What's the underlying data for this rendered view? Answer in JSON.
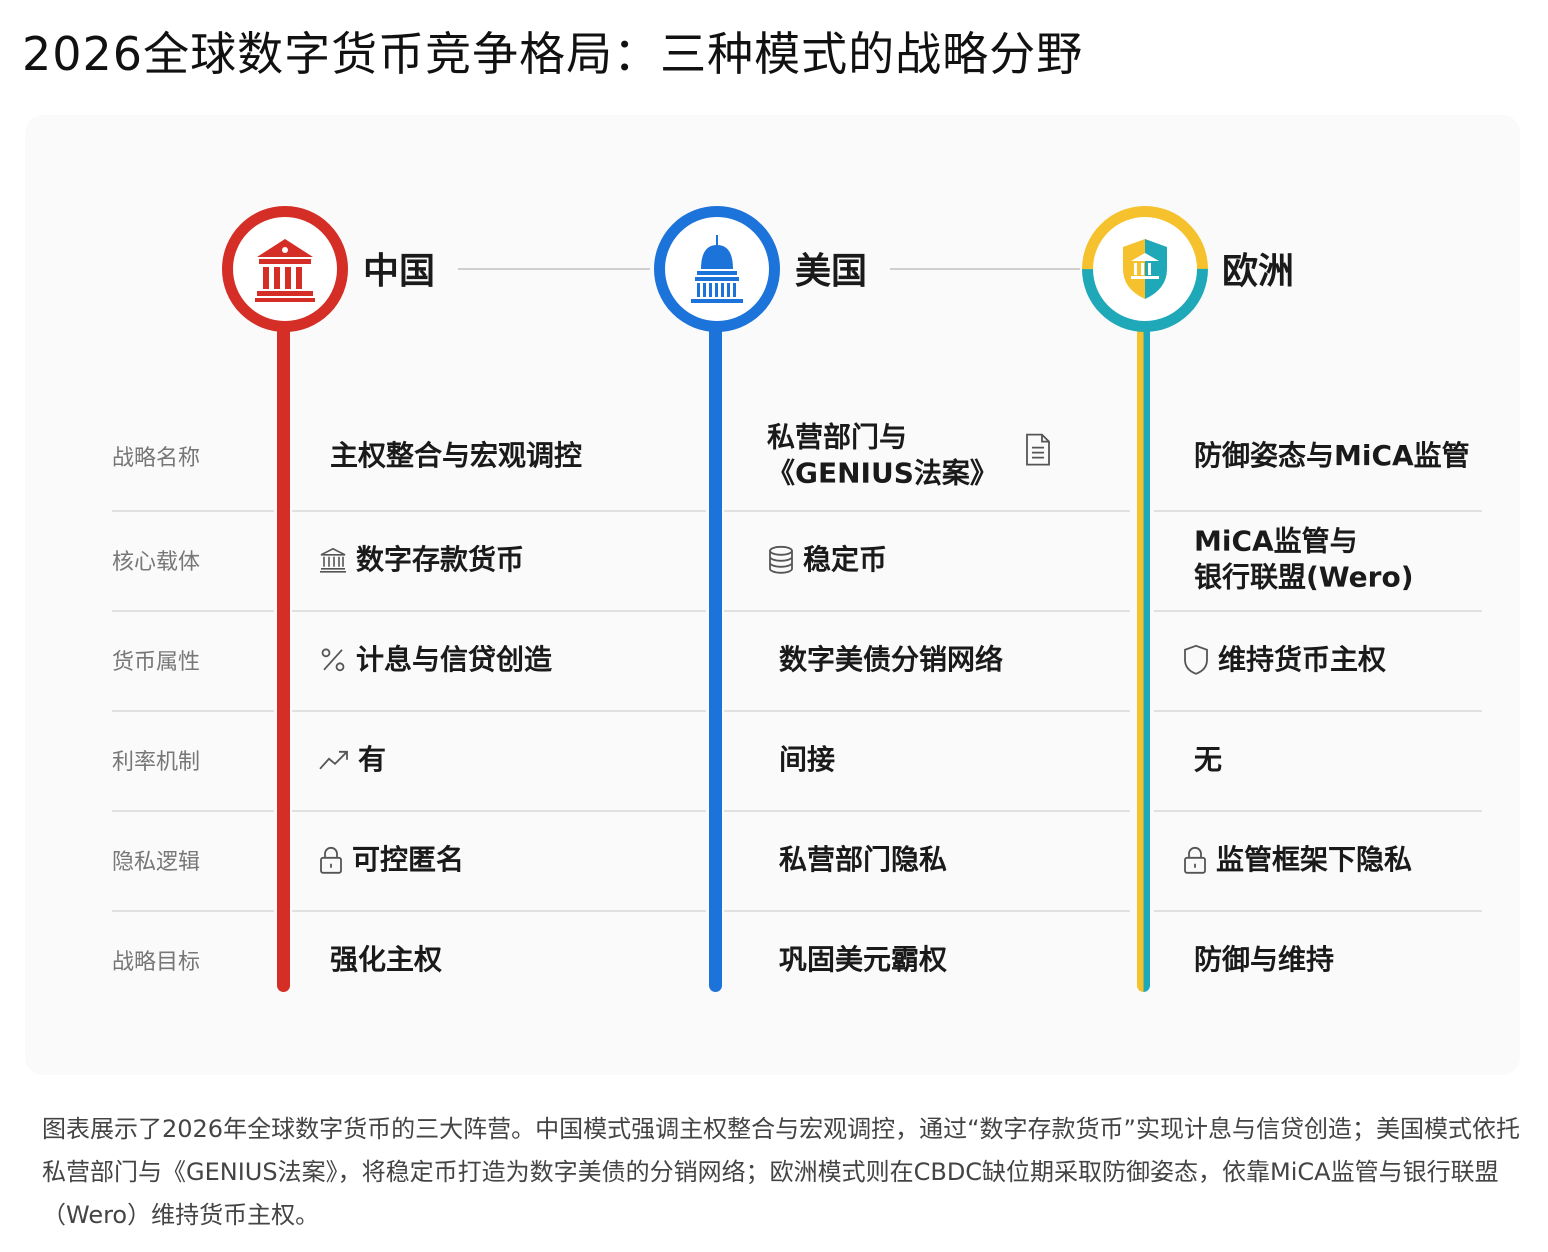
{
  "title": "2026全球数字货币竞争格局：三种模式的战略分野",
  "colors": {
    "china": "#d42e26",
    "usa": "#1c73d9",
    "eu_left": "#f5c22e",
    "eu_right": "#1fa9b8"
  },
  "columns": [
    {
      "name": "中国",
      "icon": "bank-building-icon"
    },
    {
      "name": "美国",
      "icon": "capitol-dome-icon"
    },
    {
      "name": "欧洲",
      "icon": "shield-bank-icon"
    }
  ],
  "row_labels": [
    "战略名称",
    "核心载体",
    "货币属性",
    "利率机制",
    "隐私逻辑",
    "战略目标"
  ],
  "cells": {
    "china": [
      {
        "text": "主权整合与宏观调控"
      },
      {
        "text": "数字存款货币",
        "icon": "bank-icon"
      },
      {
        "text": "计息与信贷创造",
        "icon": "percent-icon"
      },
      {
        "text": "有",
        "icon": "trend-up-icon"
      },
      {
        "text": "可控匿名",
        "icon": "lock-icon"
      },
      {
        "text": "强化主权"
      }
    ],
    "usa": [
      {
        "text": "私营部门与",
        "text2": "《GENIUS法案》",
        "icon": "document-icon"
      },
      {
        "text": "稳定币",
        "icon": "database-icon"
      },
      {
        "text": "数字美债分销网络"
      },
      {
        "text": "间接"
      },
      {
        "text": "私营部门隐私"
      },
      {
        "text": "巩固美元霸权"
      }
    ],
    "eu": [
      {
        "text": "防御姿态与MiCA监管"
      },
      {
        "text": "MiCA监管与",
        "text2": "银行联盟(Wero)"
      },
      {
        "text": "维持货币主权",
        "icon": "shield-icon"
      },
      {
        "text": "无"
      },
      {
        "text": "监管框架下隐私",
        "icon": "lock-icon"
      },
      {
        "text": "防御与维持"
      }
    ]
  },
  "caption": "图表展示了2026年全球数字货币的三大阵营。中国模式强调主权整合与宏观调控，通过“数字存款货币”实现计息与信贷创造；美国模式依托私营部门与《GENIUS法案》，将稳定币打造为数字美债的分销网络；欧洲模式则在CBDC缺位期采取防御姿态，依靠MiCA监管与银行联盟（Wero）维持货币主权。"
}
